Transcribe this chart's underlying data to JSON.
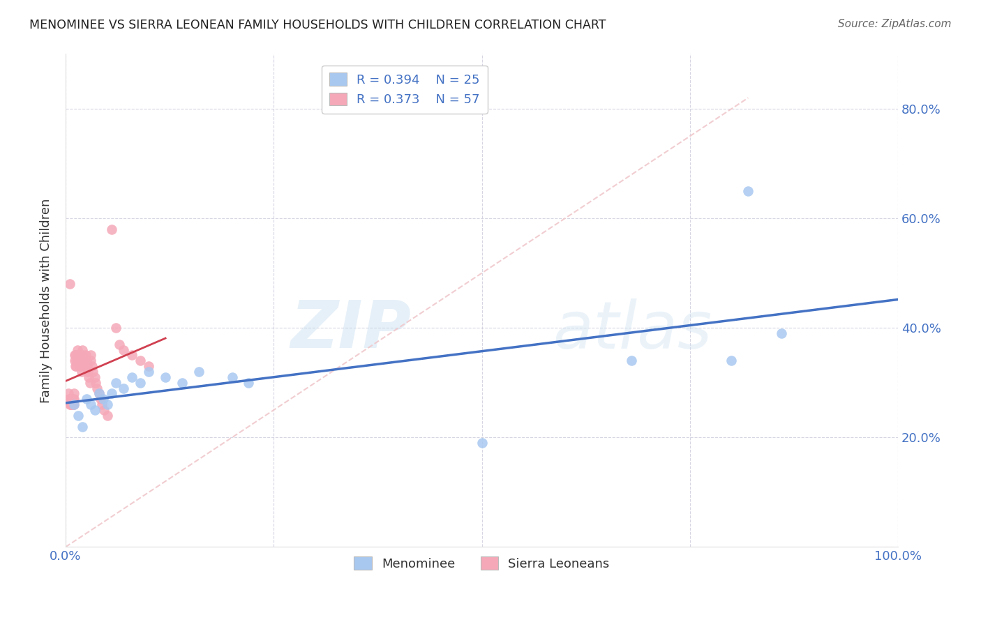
{
  "title": "MENOMINEE VS SIERRA LEONEAN FAMILY HOUSEHOLDS WITH CHILDREN CORRELATION CHART",
  "source": "Source: ZipAtlas.com",
  "ylabel": "Family Households with Children",
  "menominee_R": "0.394",
  "menominee_N": "25",
  "sierra_R": "0.373",
  "sierra_N": "57",
  "legend_label_1": "Menominee",
  "legend_label_2": "Sierra Leoneans",
  "menominee_color": "#a8c8f0",
  "sierra_color": "#f5a8b8",
  "menominee_line_color": "#4472c4",
  "sierra_line_color": "#d04050",
  "diagonal_color": "#f0c8cc",
  "xlim": [
    0.0,
    1.0
  ],
  "ylim": [
    0.0,
    0.9
  ],
  "xtick_positions": [
    0.0,
    0.25,
    0.5,
    0.75,
    1.0
  ],
  "xtick_labels": [
    "0.0%",
    "",
    "",
    "",
    "100.0%"
  ],
  "ytick_positions": [
    0.2,
    0.4,
    0.6,
    0.8
  ],
  "ytick_labels": [
    "20.0%",
    "40.0%",
    "60.0%",
    "80.0%"
  ],
  "menominee_x": [
    0.01,
    0.015,
    0.02,
    0.025,
    0.03,
    0.035,
    0.04,
    0.045,
    0.05,
    0.055,
    0.06,
    0.07,
    0.08,
    0.09,
    0.1,
    0.12,
    0.14,
    0.16,
    0.2,
    0.22,
    0.5,
    0.68,
    0.8,
    0.82,
    0.86
  ],
  "menominee_y": [
    0.26,
    0.24,
    0.22,
    0.27,
    0.26,
    0.25,
    0.28,
    0.27,
    0.26,
    0.28,
    0.3,
    0.29,
    0.31,
    0.3,
    0.32,
    0.31,
    0.3,
    0.32,
    0.31,
    0.3,
    0.19,
    0.34,
    0.34,
    0.65,
    0.39
  ],
  "sierra_x": [
    0.003,
    0.004,
    0.005,
    0.005,
    0.006,
    0.006,
    0.007,
    0.007,
    0.008,
    0.008,
    0.009,
    0.009,
    0.01,
    0.01,
    0.01,
    0.011,
    0.011,
    0.012,
    0.012,
    0.013,
    0.013,
    0.014,
    0.015,
    0.015,
    0.016,
    0.017,
    0.018,
    0.019,
    0.02,
    0.02,
    0.022,
    0.023,
    0.024,
    0.025,
    0.026,
    0.027,
    0.028,
    0.029,
    0.03,
    0.03,
    0.032,
    0.033,
    0.035,
    0.036,
    0.038,
    0.04,
    0.042,
    0.044,
    0.046,
    0.05,
    0.055,
    0.06,
    0.065,
    0.07,
    0.08,
    0.09,
    0.1
  ],
  "sierra_y": [
    0.28,
    0.27,
    0.26,
    0.48,
    0.27,
    0.26,
    0.27,
    0.26,
    0.27,
    0.26,
    0.27,
    0.26,
    0.28,
    0.27,
    0.26,
    0.35,
    0.34,
    0.33,
    0.35,
    0.34,
    0.33,
    0.36,
    0.35,
    0.34,
    0.35,
    0.34,
    0.33,
    0.32,
    0.36,
    0.35,
    0.34,
    0.33,
    0.35,
    0.34,
    0.33,
    0.32,
    0.31,
    0.3,
    0.35,
    0.34,
    0.33,
    0.32,
    0.31,
    0.3,
    0.29,
    0.28,
    0.27,
    0.26,
    0.25,
    0.24,
    0.58,
    0.4,
    0.37,
    0.36,
    0.35,
    0.34,
    0.33
  ]
}
